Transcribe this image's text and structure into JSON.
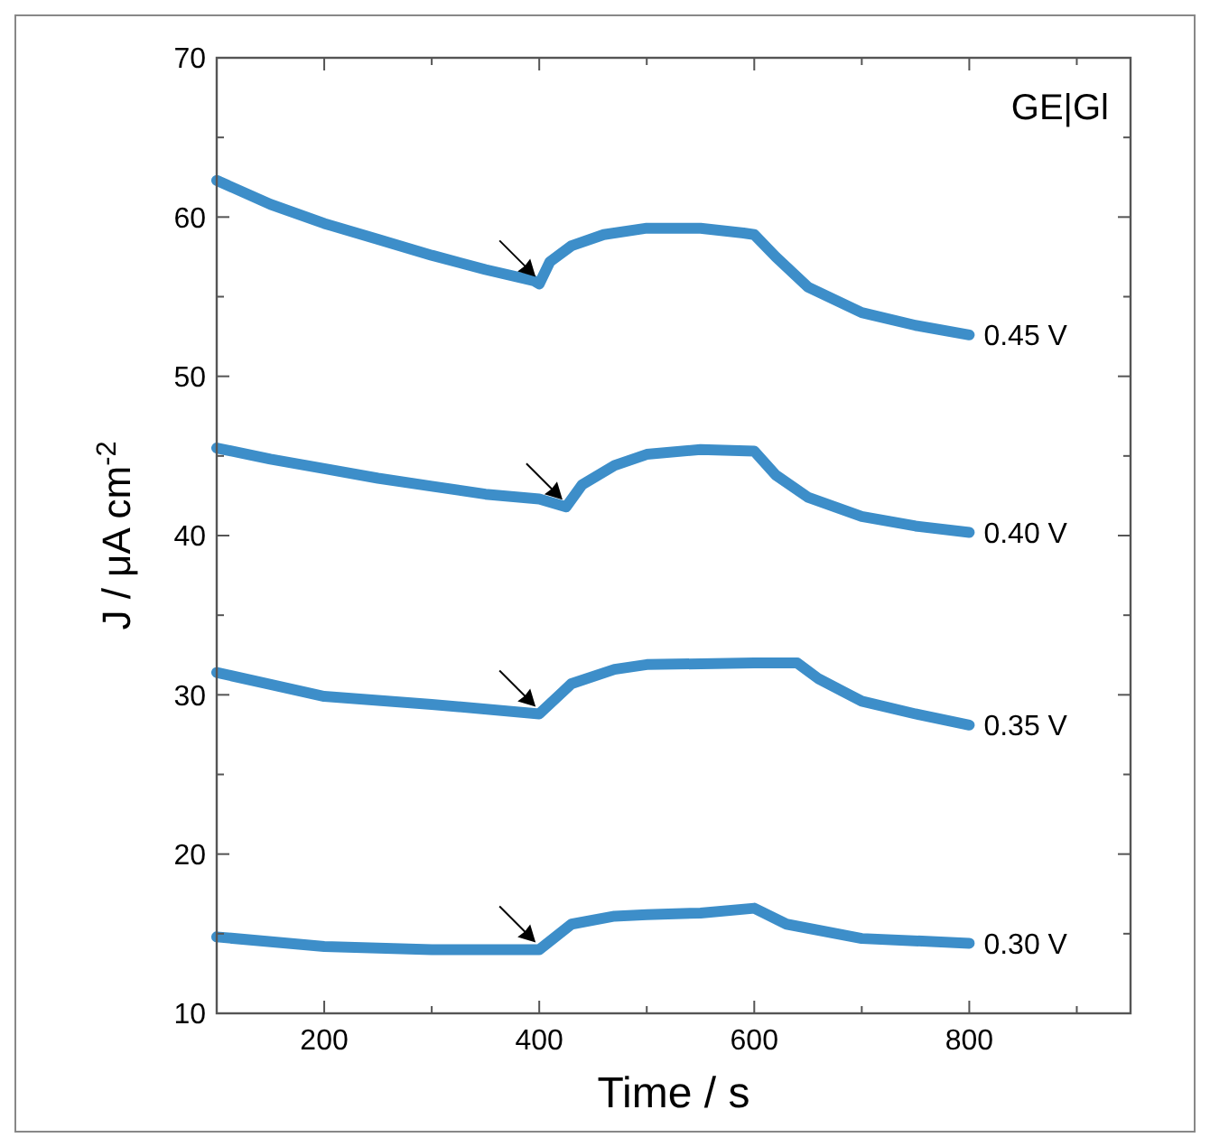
{
  "chart_data": {
    "type": "line",
    "xlabel": "Time / s",
    "ylabel": "J / μA cm$^{-2}$",
    "annotations": [
      "GE|Gl"
    ],
    "xlim": [
      100,
      950
    ],
    "xticks": [
      {
        "value": 200,
        "label": "200"
      },
      {
        "value": 300,
        "label": null
      },
      {
        "value": 400,
        "label": "400"
      },
      {
        "value": 500,
        "label": null
      },
      {
        "value": 600,
        "label": "600"
      },
      {
        "value": 700,
        "label": null
      },
      {
        "value": 800,
        "label": "800"
      },
      {
        "value": 900,
        "label": null
      }
    ],
    "ylim": [
      10,
      70
    ],
    "yticks": [
      10,
      {
        "value": 15,
        "label": null
      },
      20,
      {
        "value": 25,
        "label": null
      },
      30,
      {
        "value": 35,
        "label": null
      },
      40,
      {
        "value": 45,
        "label": null
      },
      50,
      {
        "value": 55,
        "label": null
      },
      60,
      {
        "value": 65,
        "label": null
      },
      70
    ],
    "grid": false,
    "marker": "none",
    "line_style": "solid",
    "series": [
      {
        "name": "0.45 V",
        "color": "#3d8ec9",
        "x": [
          100,
          150,
          200,
          250,
          300,
          350,
          395,
          400,
          410,
          430,
          460,
          500,
          550,
          590,
          600,
          620,
          650,
          700,
          750,
          800
        ],
        "values": [
          62.3,
          60.8,
          59.6,
          58.6,
          57.6,
          56.7,
          56.0,
          55.8,
          57.2,
          58.2,
          58.9,
          59.3,
          59.3,
          59.0,
          58.9,
          57.5,
          55.6,
          54.0,
          53.2,
          52.6
        ]
      },
      {
        "name": "0.40 V",
        "color": "#3d8ec9",
        "x": [
          100,
          150,
          200,
          250,
          300,
          350,
          400,
          425,
          440,
          470,
          500,
          550,
          600,
          620,
          650,
          700,
          750,
          800
        ],
        "values": [
          45.5,
          44.8,
          44.2,
          43.6,
          43.1,
          42.6,
          42.3,
          41.8,
          43.2,
          44.4,
          45.1,
          45.4,
          45.3,
          43.8,
          42.4,
          41.2,
          40.6,
          40.2
        ]
      },
      {
        "name": "0.35 V",
        "color": "#3d8ec9",
        "x": [
          100,
          200,
          300,
          400,
          430,
          470,
          500,
          600,
          640,
          660,
          700,
          750,
          800
        ],
        "values": [
          31.4,
          29.9,
          29.4,
          28.8,
          30.7,
          31.6,
          31.9,
          32.0,
          32.0,
          31.0,
          29.6,
          28.8,
          28.1
        ]
      },
      {
        "name": "0.30 V",
        "color": "#3d8ec9",
        "x": [
          100,
          200,
          300,
          400,
          430,
          470,
          500,
          550,
          600,
          630,
          700,
          800
        ],
        "values": [
          14.8,
          14.2,
          14.0,
          14.0,
          15.6,
          16.1,
          16.2,
          16.3,
          16.6,
          15.6,
          14.7,
          14.4
        ]
      }
    ]
  }
}
